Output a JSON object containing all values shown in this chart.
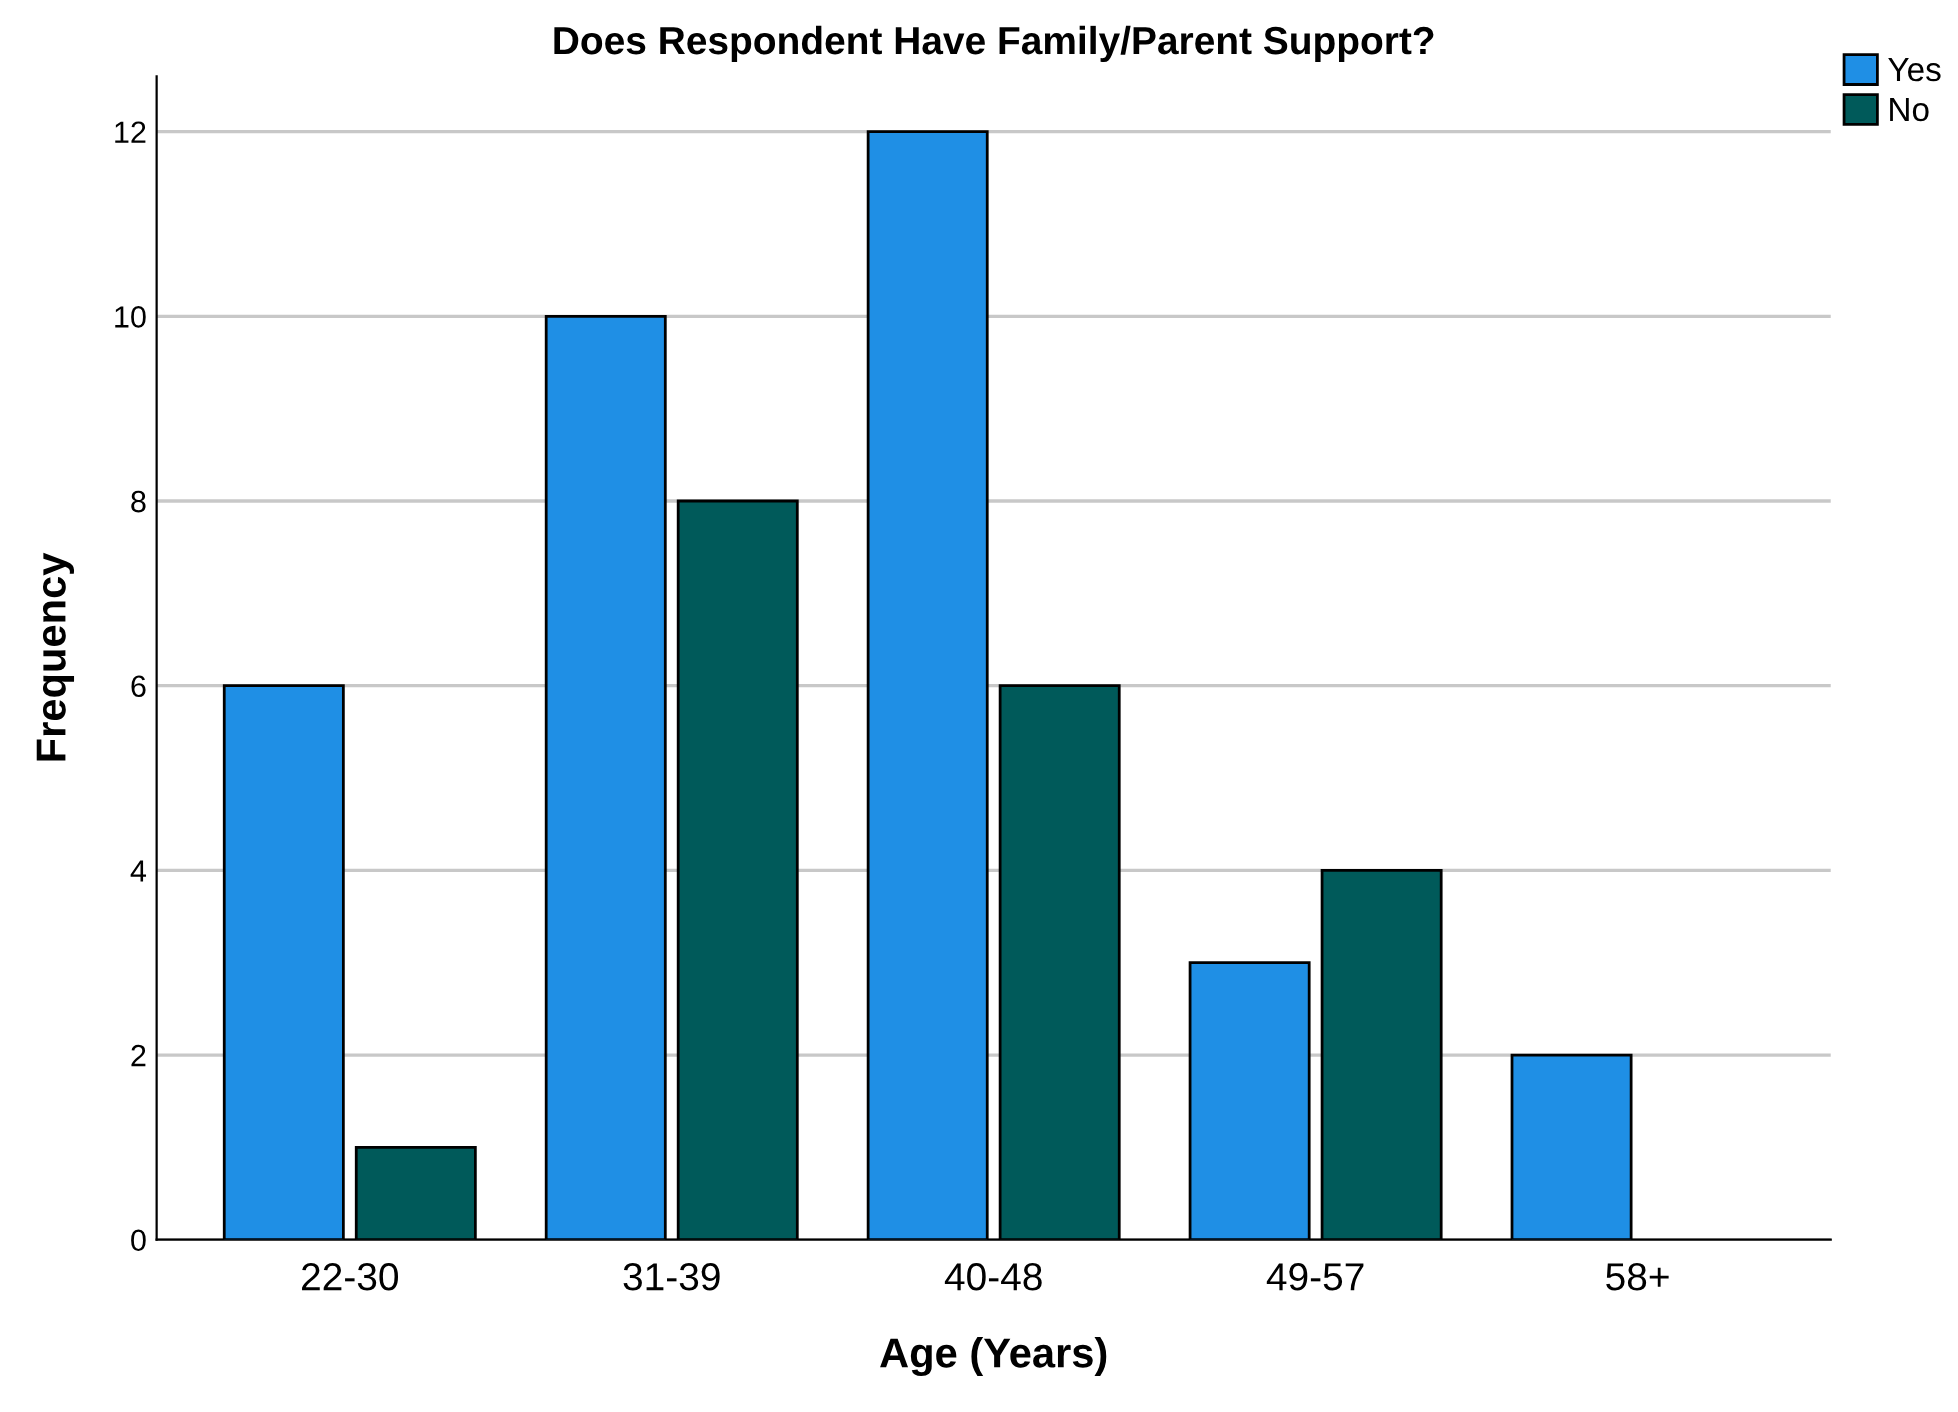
{
  "chart_data": {
    "type": "bar",
    "title": "Does Respondent Have Family/Parent Support?",
    "xlabel": "Age (Years)",
    "ylabel": "Frequency",
    "categories": [
      "22-30",
      "31-39",
      "40-48",
      "49-57",
      "58+"
    ],
    "series": [
      {
        "name": "Yes",
        "color": "#1f8fe5",
        "values": [
          6,
          10,
          12,
          3,
          2
        ]
      },
      {
        "name": "No",
        "color": "#005a5a",
        "values": [
          1,
          8,
          6,
          4,
          null
        ]
      }
    ],
    "ylim": [
      0,
      12.6
    ],
    "yticks": [
      0,
      2,
      4,
      6,
      8,
      10,
      12
    ],
    "grid": "y",
    "legend": "top right"
  }
}
